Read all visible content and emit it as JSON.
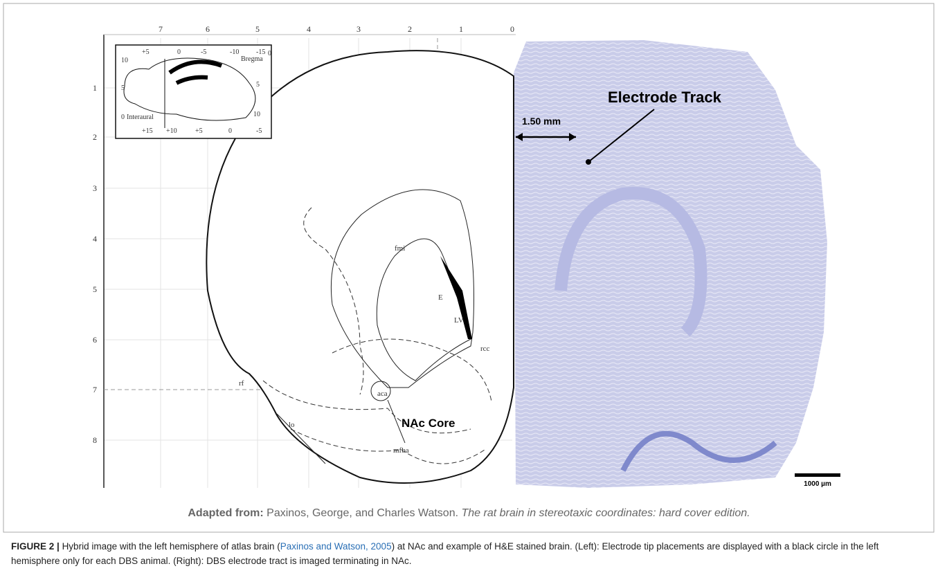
{
  "figure": {
    "atlas": {
      "top_ticks": [
        "7",
        "6",
        "5",
        "4",
        "3",
        "2",
        "1",
        "0"
      ],
      "left_ticks": [
        "1",
        "2",
        "3",
        "4",
        "5",
        "6",
        "7",
        "8"
      ],
      "inset": [
        "+5",
        "0",
        "-5",
        "-10",
        "-15",
        "0",
        "10",
        "5",
        "Bregma",
        "5",
        "0",
        "Interaural",
        "10",
        "+15",
        "+10",
        "+5",
        "0",
        "-5"
      ],
      "labels": [
        "fmi",
        "E",
        "LV",
        "rcc",
        "rf",
        "aca",
        "lo",
        "mfba"
      ],
      "nac": "NAc Core"
    },
    "histology": {
      "track": "Electrode Track",
      "distance": "1.50 mm",
      "scale": "1000 µm"
    },
    "source": {
      "lead": "Adapted from:",
      "authors": "Paxinos, George, and Charles Watson.",
      "work": "The rat brain in stereotaxic coordinates: hard cover edition."
    },
    "caption": {
      "label": "FIGURE 2 |",
      "before": "Hybrid image with the left hemisphere of atlas brain (",
      "cite": "Paxinos and Watson, 2005",
      "after": ") at NAc and example of H&E stained brain. (Left): Electrode tip placements are displayed with a black circle in the left hemisphere only for each DBS animal. (Right): DBS electrode tract is imaged terminating in NAc."
    }
  }
}
